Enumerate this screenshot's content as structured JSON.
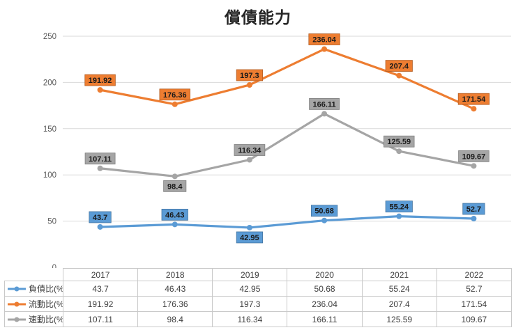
{
  "chart_data": {
    "type": "line",
    "title": "償債能力",
    "categories": [
      "2017",
      "2018",
      "2019",
      "2020",
      "2021",
      "2022"
    ],
    "series": [
      {
        "name": "負債比(%)",
        "color": "#5B9BD5",
        "border_color": "#41719C",
        "values": [
          43.7,
          46.43,
          42.95,
          50.68,
          55.24,
          52.7
        ],
        "label_positions": [
          "above",
          "above",
          "below",
          "above",
          "above",
          "above"
        ]
      },
      {
        "name": "流動比(%)",
        "color": "#ED7D31",
        "border_color": "#AE5A21",
        "values": [
          191.92,
          176.36,
          197.3,
          236.04,
          207.4,
          171.54
        ],
        "label_positions": [
          "above",
          "above",
          "above",
          "above",
          "above",
          "above"
        ]
      },
      {
        "name": "速動比(%)",
        "color": "#A5A5A5",
        "border_color": "#7B7B7B",
        "values": [
          107.11,
          98.4,
          116.34,
          166.11,
          125.59,
          109.67
        ],
        "label_positions": [
          "above",
          "below",
          "above",
          "above",
          "above",
          "above"
        ]
      }
    ],
    "ylim": [
      0,
      250
    ],
    "yticks": [
      0,
      50,
      100,
      150,
      200,
      250
    ],
    "grid": "horizontal",
    "gridline_color": "#D9D9D9",
    "axis_text_color": "#595959",
    "label_text_color": "#1a1a1a",
    "legend_position": "table-left",
    "xlabel": "",
    "ylabel": ""
  }
}
